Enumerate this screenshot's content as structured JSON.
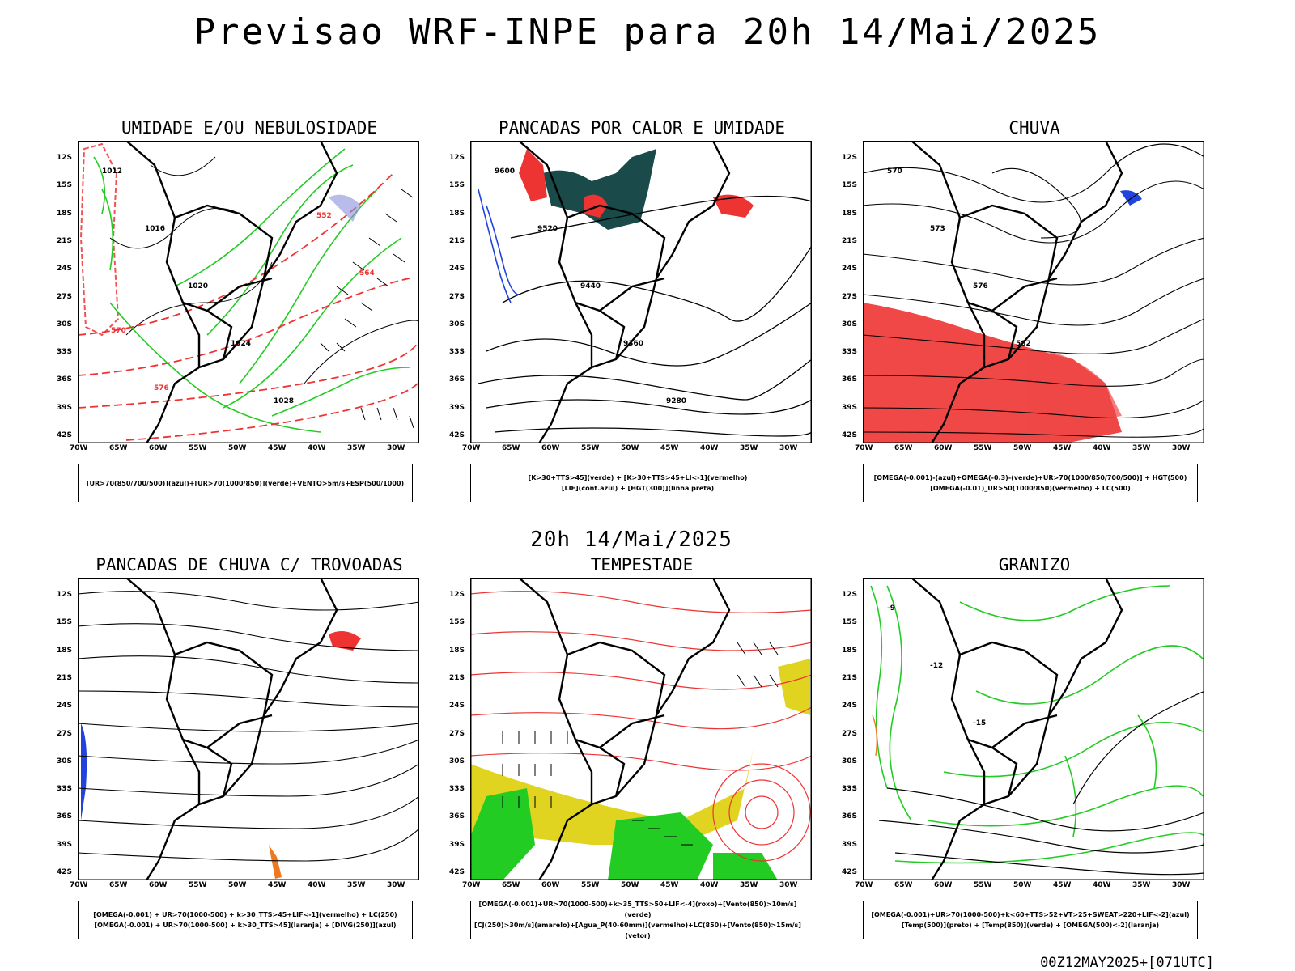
{
  "title": "Previsao WRF-INPE  para 20h 14/Mai/2025",
  "middle_title": "20h 14/Mai/2025",
  "footer": "00Z12MAY2025+[071UTC]",
  "axes": {
    "lat": [
      "12S",
      "15S",
      "18S",
      "21S",
      "24S",
      "27S",
      "30S",
      "33S",
      "36S",
      "39S",
      "42S"
    ],
    "lon": [
      "70W",
      "65W",
      "60W",
      "55W",
      "50W",
      "45W",
      "40W",
      "35W",
      "30W"
    ]
  },
  "colors": {
    "red": "#ee3333",
    "green": "#22cc22",
    "blue": "#2244dd",
    "teal": "#1a4a4a",
    "yellow": "#e0d420",
    "orange": "#ee7722"
  },
  "panels": [
    {
      "id": "umidade",
      "title": "UMIDADE E/OU NEBULOSIDADE",
      "legend": [
        "[UR>70(850/700/500)](azul)+[UR>70(1000/850)](verde)+VENTO>5m/s+ESP(500/1000)"
      ],
      "contour_labels": [
        "1012",
        "1016",
        "1020",
        "1024",
        "1028",
        "552",
        "564",
        "570",
        "576"
      ]
    },
    {
      "id": "pancadas-calor",
      "title": "PANCADAS POR CALOR E UMIDADE",
      "legend": [
        "[K>30+TTS>45](verde) + [K>30+TTS>45+LI<-1](vermelho)",
        "[LIF](cont.azul) + [HGT(300)](linha preta)"
      ],
      "contour_labels": [
        "9600",
        "9520",
        "9440",
        "9360",
        "9280"
      ]
    },
    {
      "id": "chuva",
      "title": "CHUVA",
      "legend": [
        "[OMEGA(-0.001)-(azul)+OMEGA(-0.3)-(verde)+UR>70(1000/850/700/500)] + HGT(500)",
        "[OMEGA(-0.01)_UR>50(1000/850)(vermelho) + LC(500)"
      ],
      "contour_labels": [
        "570",
        "573",
        "576",
        "582"
      ]
    },
    {
      "id": "trovoadas",
      "title": "PANCADAS DE CHUVA C/ TROVOADAS",
      "legend": [
        "[OMEGA(-0.001) + UR>70(1000-500) + k>30_TTS>45+LIF<-1](vermelho) + LC(250)",
        "[OMEGA(-0.001) + UR>70(1000-500) + k>30_TTS>45](laranja) + [DIVG(250)](azul)"
      ],
      "contour_labels": []
    },
    {
      "id": "tempestade",
      "title": "TEMPESTADE",
      "legend": [
        "[OMEGA(-0.001)+UR>70(1000-500)+k>35_TTS>50+LIF<-4](roxo)+[Vento(850)>10m/s](verde)",
        "[CJ(250)>30m/s](amarelo)+[Agua_P(40-60mm)](vermelho)+LC(850)+[Vento(850)>15m/s](vetor)"
      ],
      "contour_labels": []
    },
    {
      "id": "granizo",
      "title": "GRANIZO",
      "legend": [
        "[OMEGA(-0.001)+UR>70(1000-500)+k<60+TTS>52+VT>25+SWEAT>220+LIF<-2](azul)",
        "[Temp(500)](preto) + [Temp(850)](verde) + [OMEGA(500)<-2](laranja)"
      ],
      "contour_labels": [
        "-9",
        "-12",
        "-15"
      ]
    }
  ]
}
